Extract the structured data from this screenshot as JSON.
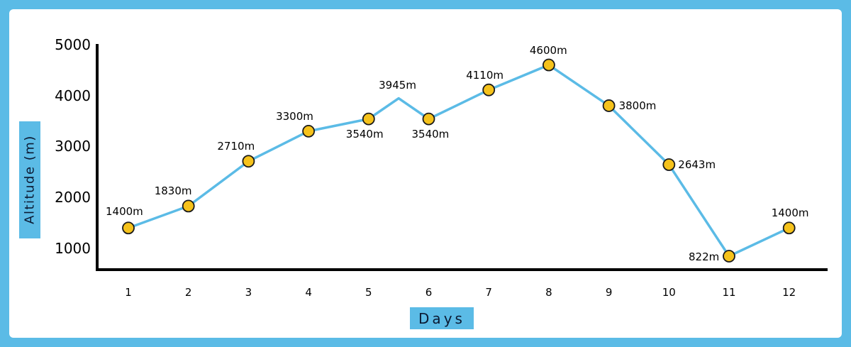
{
  "chart_data": {
    "type": "line",
    "title": "",
    "xlabel": "Days",
    "ylabel": "Altitude (m)",
    "x": [
      1,
      2,
      3,
      4,
      5,
      6,
      7,
      8,
      9,
      10,
      11,
      12
    ],
    "categories": [
      "1",
      "2",
      "3",
      "4",
      "5",
      "6",
      "7",
      "8",
      "9",
      "10",
      "11",
      "12"
    ],
    "series": [
      {
        "name": "Altitude",
        "values": [
          1400,
          1830,
          2710,
          3300,
          3540,
          3540,
          4110,
          4600,
          3800,
          2643,
          822,
          1400
        ],
        "labels": [
          "1400m",
          "1830m",
          "2710m",
          "3300m",
          "3540m",
          "3540m",
          "4110m",
          "4600m",
          "3800m",
          "2643m",
          "822m",
          "1400m"
        ]
      }
    ],
    "annotations": [
      {
        "x": 5.5,
        "value": 3945,
        "label": "3945m",
        "note": "intermediate peak between day 5 and 6, no marker"
      }
    ],
    "yticks": [
      1000,
      2000,
      3000,
      4000,
      5000
    ],
    "ytick_labels": [
      "1000",
      "2000",
      "3000",
      "4000",
      "5000"
    ],
    "ylim": [
      600,
      5000
    ],
    "grid": false,
    "legend": null,
    "colors": {
      "frame": "#5bbbe6",
      "line": "#5bbbe6",
      "marker_fill": "#f5c21b",
      "marker_stroke": "#1a1a1a",
      "axis": "#000000",
      "label_box": "#5bbbe6"
    }
  },
  "axis": {
    "y_title": "Altitude (m)",
    "x_title": "Days"
  }
}
